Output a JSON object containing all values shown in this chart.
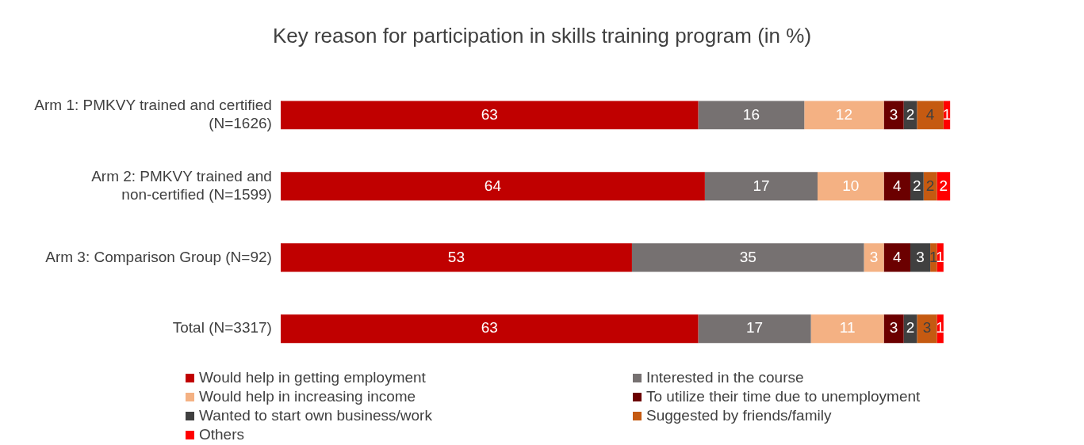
{
  "chart_data": {
    "type": "bar",
    "orientation": "horizontal",
    "stacked": true,
    "title": "Key reason for participation in skills training program (in %)",
    "categories": [
      "Arm 1: PMKVY trained and certified (N=1626)",
      "Arm 2: PMKVY trained and non-certified (N=1599)",
      "Arm 3: Comparison Group (N=92)",
      "Total (N=3317)"
    ],
    "series": [
      {
        "name": "Would help in getting employment",
        "color": "#c00000",
        "values": [
          63,
          64,
          53,
          63
        ]
      },
      {
        "name": "Interested in the course",
        "color": "#767171",
        "values": [
          16,
          17,
          35,
          17
        ]
      },
      {
        "name": "Would help in increasing income",
        "color": "#f4b183",
        "values": [
          12,
          10,
          3,
          11
        ]
      },
      {
        "name": "To utilize their time due to unemployment",
        "color": "#6b0000",
        "values": [
          3,
          4,
          4,
          3
        ]
      },
      {
        "name": "Wanted to start own business/work",
        "color": "#404040",
        "values": [
          2,
          2,
          3,
          2
        ]
      },
      {
        "name": "Suggested by friends/family",
        "color": "#c55a11",
        "values": [
          4,
          2,
          1,
          3
        ]
      },
      {
        "name": "Others",
        "color": "#ff0000",
        "values": [
          1,
          2,
          1,
          1
        ]
      }
    ],
    "data_labels": true,
    "legend": "bottom"
  }
}
